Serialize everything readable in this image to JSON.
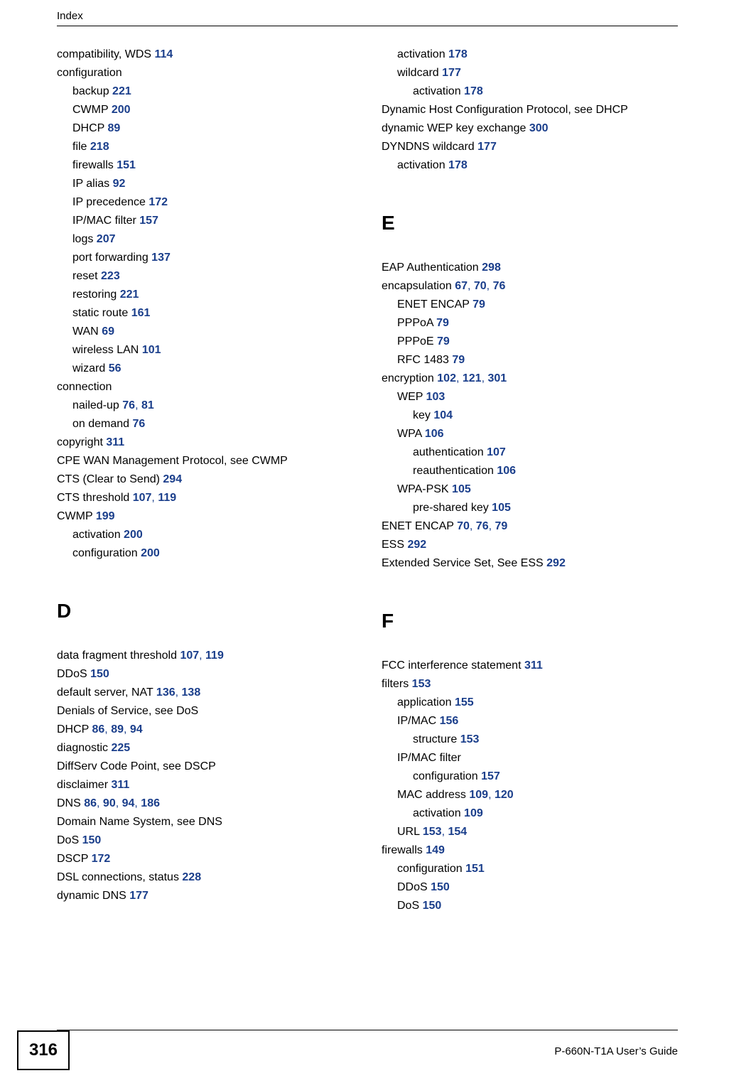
{
  "header_label": "Index",
  "page_number": "316",
  "footer_guide": "P-660N-T1A User’s Guide",
  "link_color": "#1a3e8b",
  "left_column": [
    {
      "text": "compatibility, WDS ",
      "pages": [
        "114"
      ],
      "level": 0,
      "section": false
    },
    {
      "text": "configuration",
      "pages": [],
      "level": 0,
      "section": false
    },
    {
      "text": "backup ",
      "pages": [
        "221"
      ],
      "level": 1,
      "section": false
    },
    {
      "text": "CWMP ",
      "pages": [
        "200"
      ],
      "level": 1,
      "section": false
    },
    {
      "text": "DHCP ",
      "pages": [
        "89"
      ],
      "level": 1,
      "section": false
    },
    {
      "text": "file ",
      "pages": [
        "218"
      ],
      "level": 1,
      "section": false
    },
    {
      "text": "firewalls ",
      "pages": [
        "151"
      ],
      "level": 1,
      "section": false
    },
    {
      "text": "IP alias ",
      "pages": [
        "92"
      ],
      "level": 1,
      "section": false
    },
    {
      "text": "IP precedence ",
      "pages": [
        "172"
      ],
      "level": 1,
      "section": false
    },
    {
      "text": "IP/MAC filter ",
      "pages": [
        "157"
      ],
      "level": 1,
      "section": false
    },
    {
      "text": "logs ",
      "pages": [
        "207"
      ],
      "level": 1,
      "section": false
    },
    {
      "text": "port forwarding ",
      "pages": [
        "137"
      ],
      "level": 1,
      "section": false
    },
    {
      "text": "reset ",
      "pages": [
        "223"
      ],
      "level": 1,
      "section": false
    },
    {
      "text": "restoring ",
      "pages": [
        "221"
      ],
      "level": 1,
      "section": false
    },
    {
      "text": "static route ",
      "pages": [
        "161"
      ],
      "level": 1,
      "section": false
    },
    {
      "text": "WAN ",
      "pages": [
        "69"
      ],
      "level": 1,
      "section": false
    },
    {
      "text": "wireless LAN ",
      "pages": [
        "101"
      ],
      "level": 1,
      "section": false
    },
    {
      "text": "wizard ",
      "pages": [
        "56"
      ],
      "level": 1,
      "section": false
    },
    {
      "text": "connection",
      "pages": [],
      "level": 0,
      "section": false
    },
    {
      "text": "nailed-up ",
      "pages": [
        "76",
        "81"
      ],
      "level": 1,
      "section": false
    },
    {
      "text": "on demand ",
      "pages": [
        "76"
      ],
      "level": 1,
      "section": false
    },
    {
      "text": "copyright ",
      "pages": [
        "311"
      ],
      "level": 0,
      "section": false
    },
    {
      "text": "CPE WAN Management Protocol, see CWMP",
      "pages": [],
      "level": 0,
      "section": false
    },
    {
      "text": "CTS (Clear to Send) ",
      "pages": [
        "294"
      ],
      "level": 0,
      "section": false
    },
    {
      "text": "CTS threshold ",
      "pages": [
        "107",
        "119"
      ],
      "level": 0,
      "section": false
    },
    {
      "text": "CWMP ",
      "pages": [
        "199"
      ],
      "level": 0,
      "section": false
    },
    {
      "text": "activation ",
      "pages": [
        "200"
      ],
      "level": 1,
      "section": false
    },
    {
      "text": "configuration ",
      "pages": [
        "200"
      ],
      "level": 1,
      "section": false
    },
    {
      "text": "D",
      "pages": [],
      "level": 0,
      "section": true
    },
    {
      "text": "data fragment threshold ",
      "pages": [
        "107",
        "119"
      ],
      "level": 0,
      "section": false
    },
    {
      "text": "DDoS ",
      "pages": [
        "150"
      ],
      "level": 0,
      "section": false
    },
    {
      "text": "default server, NAT ",
      "pages": [
        "136",
        "138"
      ],
      "level": 0,
      "section": false
    },
    {
      "text": "Denials of Service, see DoS",
      "pages": [],
      "level": 0,
      "section": false
    },
    {
      "text": "DHCP ",
      "pages": [
        "86",
        "89",
        "94"
      ],
      "level": 0,
      "section": false
    },
    {
      "text": "diagnostic ",
      "pages": [
        "225"
      ],
      "level": 0,
      "section": false
    },
    {
      "text": "DiffServ Code Point, see DSCP",
      "pages": [],
      "level": 0,
      "section": false
    },
    {
      "text": "disclaimer ",
      "pages": [
        "311"
      ],
      "level": 0,
      "section": false
    },
    {
      "text": "DNS ",
      "pages": [
        "86",
        "90",
        "94",
        "186"
      ],
      "level": 0,
      "section": false
    },
    {
      "text": "Domain Name System, see DNS",
      "pages": [],
      "level": 0,
      "section": false
    },
    {
      "text": "DoS ",
      "pages": [
        "150"
      ],
      "level": 0,
      "section": false
    },
    {
      "text": "DSCP ",
      "pages": [
        "172"
      ],
      "level": 0,
      "section": false
    },
    {
      "text": "DSL connections, status ",
      "pages": [
        "228"
      ],
      "level": 0,
      "section": false
    },
    {
      "text": "dynamic DNS ",
      "pages": [
        "177"
      ],
      "level": 0,
      "section": false
    }
  ],
  "right_column": [
    {
      "text": "activation ",
      "pages": [
        "178"
      ],
      "level": 1,
      "section": false
    },
    {
      "text": "wildcard ",
      "pages": [
        "177"
      ],
      "level": 1,
      "section": false
    },
    {
      "text": "activation ",
      "pages": [
        "178"
      ],
      "level": 2,
      "section": false
    },
    {
      "text": "Dynamic Host Configuration Protocol, see DHCP",
      "pages": [],
      "level": 0,
      "section": false
    },
    {
      "text": "dynamic WEP key exchange ",
      "pages": [
        "300"
      ],
      "level": 0,
      "section": false
    },
    {
      "text": "DYNDNS wildcard ",
      "pages": [
        "177"
      ],
      "level": 0,
      "section": false
    },
    {
      "text": "activation ",
      "pages": [
        "178"
      ],
      "level": 1,
      "section": false
    },
    {
      "text": "E",
      "pages": [],
      "level": 0,
      "section": true
    },
    {
      "text": "EAP Authentication ",
      "pages": [
        "298"
      ],
      "level": 0,
      "section": false
    },
    {
      "text": "encapsulation ",
      "pages": [
        "67",
        "70",
        "76"
      ],
      "level": 0,
      "section": false
    },
    {
      "text": "ENET ENCAP ",
      "pages": [
        "79"
      ],
      "level": 1,
      "section": false
    },
    {
      "text": "PPPoA ",
      "pages": [
        "79"
      ],
      "level": 1,
      "section": false
    },
    {
      "text": "PPPoE ",
      "pages": [
        "79"
      ],
      "level": 1,
      "section": false
    },
    {
      "text": "RFC 1483 ",
      "pages": [
        "79"
      ],
      "level": 1,
      "section": false
    },
    {
      "text": "encryption ",
      "pages": [
        "102",
        "121",
        "301"
      ],
      "level": 0,
      "section": false
    },
    {
      "text": "WEP ",
      "pages": [
        "103"
      ],
      "level": 1,
      "section": false
    },
    {
      "text": "key ",
      "pages": [
        "104"
      ],
      "level": 2,
      "section": false
    },
    {
      "text": "WPA ",
      "pages": [
        "106"
      ],
      "level": 1,
      "section": false
    },
    {
      "text": "authentication ",
      "pages": [
        "107"
      ],
      "level": 2,
      "section": false
    },
    {
      "text": "reauthentication ",
      "pages": [
        "106"
      ],
      "level": 2,
      "section": false
    },
    {
      "text": "WPA-PSK ",
      "pages": [
        "105"
      ],
      "level": 1,
      "section": false
    },
    {
      "text": "pre-shared key ",
      "pages": [
        "105"
      ],
      "level": 2,
      "section": false
    },
    {
      "text": "ENET ENCAP ",
      "pages": [
        "70",
        "76",
        "79"
      ],
      "level": 0,
      "section": false
    },
    {
      "text": "ESS ",
      "pages": [
        "292"
      ],
      "level": 0,
      "section": false
    },
    {
      "text": "Extended Service Set, See ESS ",
      "pages": [
        "292"
      ],
      "level": 0,
      "section": false
    },
    {
      "text": "F",
      "pages": [],
      "level": 0,
      "section": true
    },
    {
      "text": "FCC interference statement ",
      "pages": [
        "311"
      ],
      "level": 0,
      "section": false
    },
    {
      "text": "filters ",
      "pages": [
        "153"
      ],
      "level": 0,
      "section": false
    },
    {
      "text": "application ",
      "pages": [
        "155"
      ],
      "level": 1,
      "section": false
    },
    {
      "text": "IP/MAC ",
      "pages": [
        "156"
      ],
      "level": 1,
      "section": false
    },
    {
      "text": "structure ",
      "pages": [
        "153"
      ],
      "level": 2,
      "section": false
    },
    {
      "text": "IP/MAC filter",
      "pages": [],
      "level": 1,
      "section": false
    },
    {
      "text": "configuration ",
      "pages": [
        "157"
      ],
      "level": 2,
      "section": false
    },
    {
      "text": "MAC address ",
      "pages": [
        "109",
        "120"
      ],
      "level": 1,
      "section": false
    },
    {
      "text": "activation ",
      "pages": [
        "109"
      ],
      "level": 2,
      "section": false
    },
    {
      "text": "URL ",
      "pages": [
        "153",
        "154"
      ],
      "level": 1,
      "section": false
    },
    {
      "text": "firewalls ",
      "pages": [
        "149"
      ],
      "level": 0,
      "section": false
    },
    {
      "text": "configuration ",
      "pages": [
        "151"
      ],
      "level": 1,
      "section": false
    },
    {
      "text": "DDoS ",
      "pages": [
        "150"
      ],
      "level": 1,
      "section": false
    },
    {
      "text": "DoS ",
      "pages": [
        "150"
      ],
      "level": 1,
      "section": false
    }
  ]
}
